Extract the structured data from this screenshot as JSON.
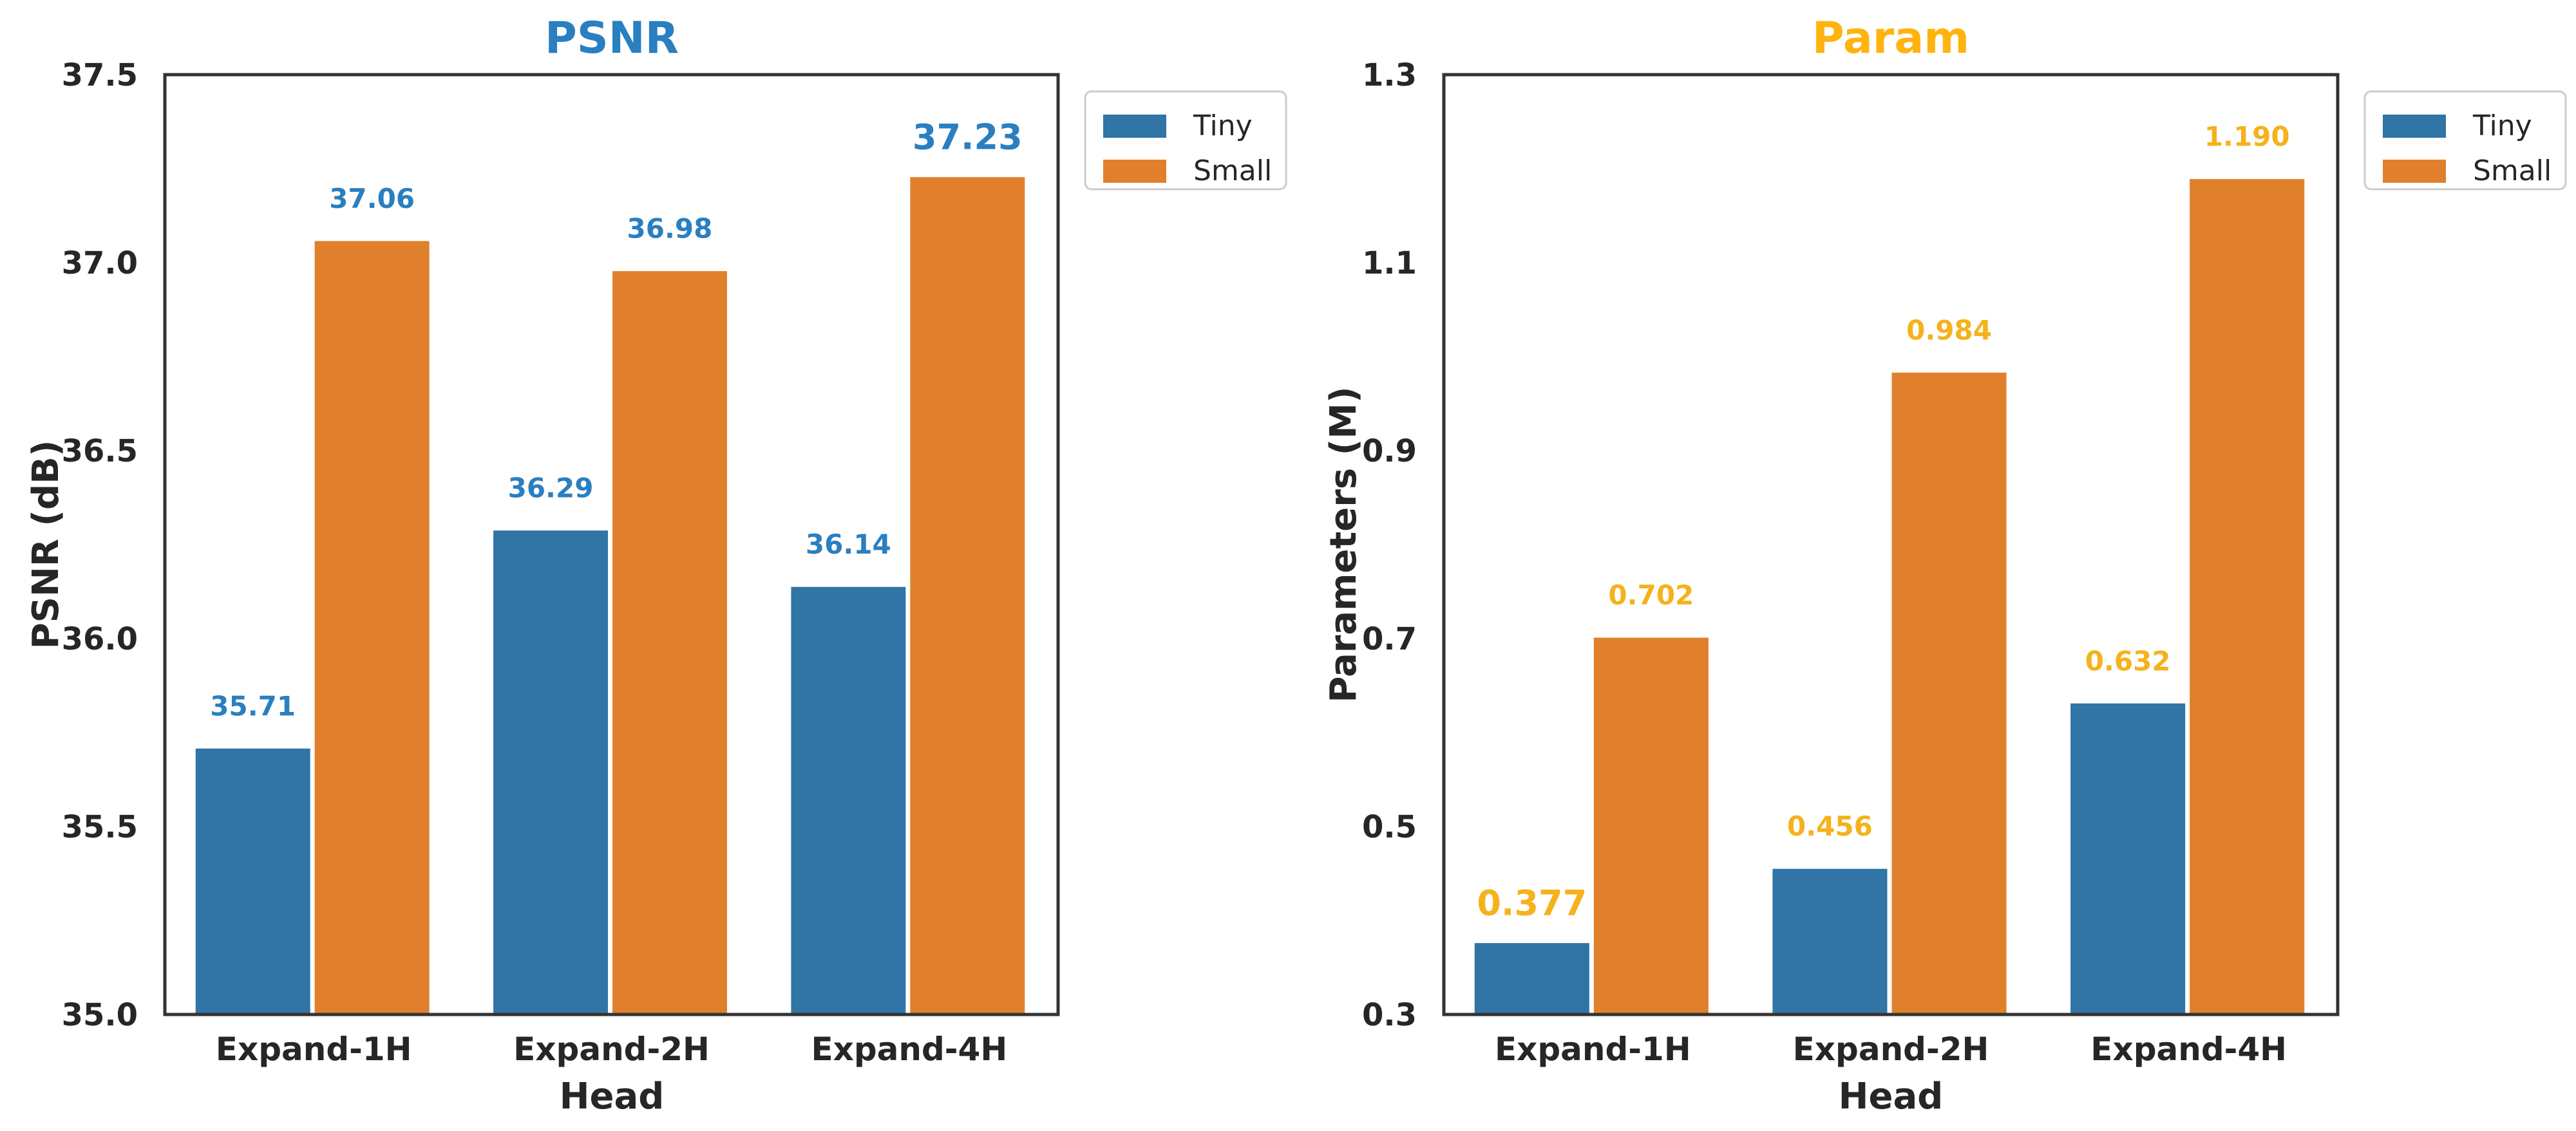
{
  "chart_data": [
    {
      "type": "bar",
      "title": "PSNR",
      "title_color": "#2a7fc0",
      "label_color": "#2a7fc0",
      "xlabel": "Head",
      "ylabel": "PSNR (dB)",
      "categories": [
        "Expand-1H",
        "Expand-2H",
        "Expand-4H"
      ],
      "ylim": [
        35.0,
        37.5
      ],
      "yticks": [
        "35.0",
        "35.5",
        "36.0",
        "36.5",
        "37.0",
        "37.5"
      ],
      "grid": false,
      "legend_position": "outside-top-right",
      "series": [
        {
          "name": "Tiny",
          "color": "#3174a6",
          "values": [
            35.71,
            36.29,
            36.14
          ],
          "labels": [
            "35.71",
            "36.29",
            "36.14"
          ]
        },
        {
          "name": "Small",
          "color": "#e0802c",
          "values": [
            37.06,
            36.98,
            37.23
          ],
          "labels": [
            "37.06",
            "36.98",
            "37.23"
          ]
        }
      ],
      "highlight": {
        "series": 1,
        "index": 2
      }
    },
    {
      "type": "bar",
      "title": "Param",
      "title_color": "#ffb30f",
      "label_color": "#f5b21c",
      "xlabel": "Head",
      "ylabel": "Parameters (M)",
      "categories": [
        "Expand-1H",
        "Expand-2H",
        "Expand-4H"
      ],
      "ylim": [
        0.3,
        1.3
      ],
      "yticks": [
        "0.3",
        "0.5",
        "0.7",
        "0.9",
        "1.1",
        "1.3"
      ],
      "grid": false,
      "legend_position": "outside-top-right",
      "series": [
        {
          "name": "Tiny",
          "color": "#3174a6",
          "values": [
            0.377,
            0.456,
            0.632
          ],
          "labels": [
            "0.377",
            "0.456",
            "0.632"
          ]
        },
        {
          "name": "Small",
          "color": "#e0802c",
          "values": [
            0.702,
            0.984,
            1.19
          ],
          "labels": [
            "0.702",
            "0.984",
            "1.190"
          ]
        }
      ],
      "highlight": {
        "series": 0,
        "index": 0
      }
    }
  ]
}
